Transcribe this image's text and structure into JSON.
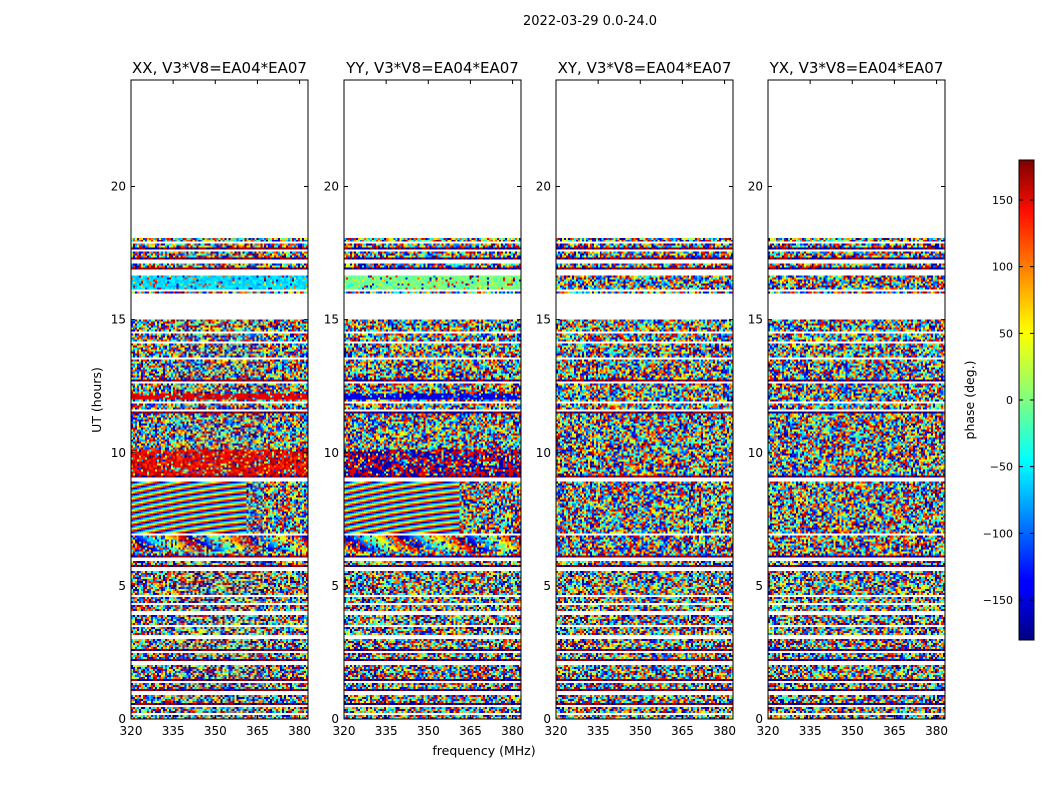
{
  "figure": {
    "title": "2022-03-29 0.0-24.0"
  },
  "chart_data": {
    "type": "heatmap",
    "xlabel": "frequency (MHz)",
    "ylabel": "UT (hours)",
    "xlim": [
      320,
      383
    ],
    "ylim": [
      0,
      24
    ],
    "xticks": [
      320,
      335,
      350,
      365,
      380
    ],
    "yticks": [
      0,
      5,
      10,
      15,
      20
    ],
    "panels": [
      {
        "title": "XX, V3*V8=EA04*EA07"
      },
      {
        "title": "YY, V3*V8=EA04*EA07"
      },
      {
        "title": "XY, V3*V8=EA04*EA07"
      },
      {
        "title": "YX, V3*V8=EA04*EA07"
      }
    ],
    "data_extent_hours": [
      0,
      18.1
    ],
    "gaps_hours": [
      [
        0.12,
        0.22
      ],
      [
        0.42,
        0.55
      ],
      [
        0.92,
        1.02
      ],
      [
        1.32,
        1.42
      ],
      [
        2.05,
        2.2
      ],
      [
        2.45,
        2.58
      ],
      [
        3.02,
        3.12
      ],
      [
        3.42,
        3.52
      ],
      [
        3.92,
        4.02
      ],
      [
        4.28,
        4.38
      ],
      [
        4.58,
        4.68
      ],
      [
        5.55,
        5.72
      ],
      [
        5.95,
        6.05
      ],
      [
        6.9,
        6.98
      ],
      [
        8.95,
        9.05
      ],
      [
        11.55,
        11.62
      ],
      [
        11.88,
        11.95
      ],
      [
        12.62,
        12.7
      ],
      [
        13.5,
        13.6
      ],
      [
        14.1,
        14.18
      ],
      [
        14.5,
        14.58
      ],
      [
        15.0,
        15.12
      ],
      [
        15.12,
        16.0
      ],
      [
        16.05,
        16.12
      ],
      [
        16.68,
        16.9
      ],
      [
        17.1,
        17.22
      ],
      [
        17.55,
        17.62
      ],
      [
        17.82,
        17.9
      ]
    ],
    "colorbar": {
      "label": "phase (deg.)",
      "range": [
        -180,
        180
      ],
      "ticks": [
        150,
        100,
        50,
        0,
        -50,
        -100,
        -150
      ],
      "tick_labels": [
        "150",
        "100",
        "50",
        "0",
        "−50",
        "−100",
        "−150"
      ],
      "colormap": "jet"
    }
  }
}
